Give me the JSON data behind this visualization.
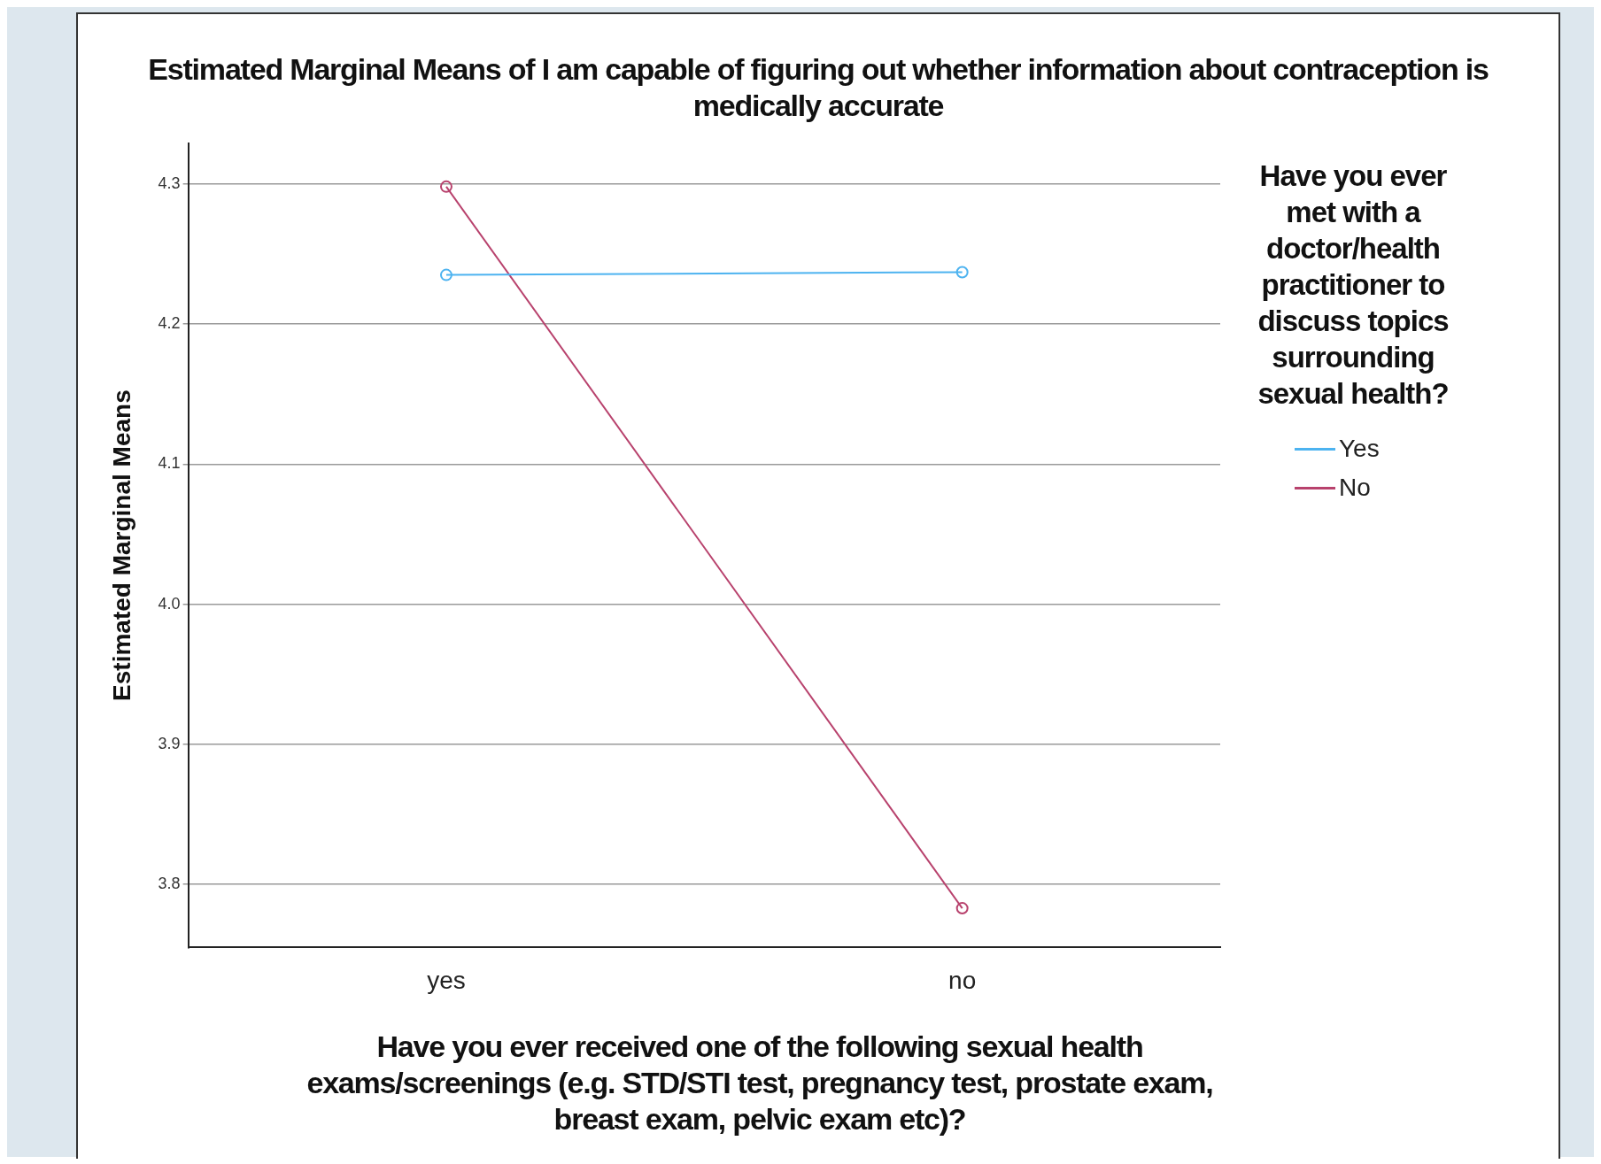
{
  "chart_data": {
    "type": "line",
    "title": "Estimated Marginal Means of I am capable of figuring out whether information about contraception is medically accurate",
    "xlabel": "Have you ever received one of the following sexual health exams/screenings (e.g. STD/STI test, pregnancy test, prostate exam, breast exam, pelvic exam etc)?",
    "ylabel": "Estimated Marginal Means",
    "legend_title": "Have you ever met with a doctor/health practitioner to discuss topics surrounding sexual health?",
    "categories": [
      "yes",
      "no"
    ],
    "series": [
      {
        "name": "Yes",
        "color": "#4db3f0",
        "values": [
          4.235,
          4.237
        ]
      },
      {
        "name": "No",
        "color": "#b8426d",
        "values": [
          4.298,
          3.783
        ]
      }
    ],
    "ylim": [
      3.755,
      4.329
    ],
    "yticks": [
      {
        "value": 3.8,
        "label": "3.8"
      },
      {
        "value": 3.9,
        "label": "3.9"
      },
      {
        "value": 4,
        "label": "4.0"
      },
      {
        "value": 4.1,
        "label": "4.1"
      },
      {
        "value": 4.2,
        "label": "4.2"
      },
      {
        "value": 4.3,
        "label": "4.3"
      }
    ],
    "grid": "y",
    "legend": "right",
    "marker": "circle",
    "line_style": "solid"
  }
}
